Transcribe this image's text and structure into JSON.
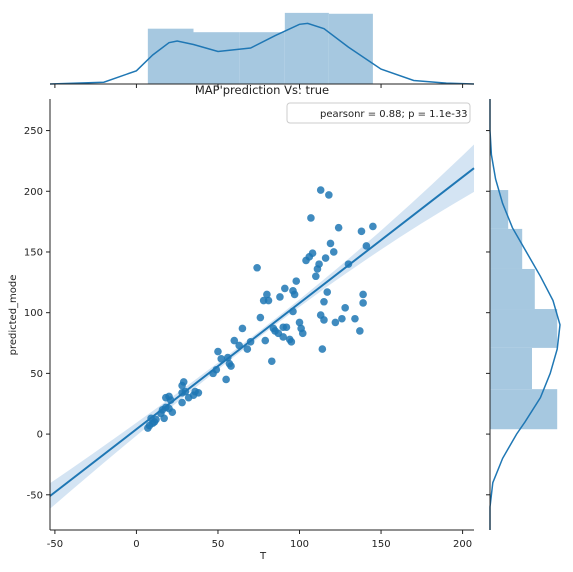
{
  "chart_data": {
    "type": "scatter",
    "title": "MAP'prediction Vs: true",
    "xlabel": "T",
    "ylabel": "predicted_mode",
    "xlim": [
      -53,
      207
    ],
    "ylim": [
      -79,
      276
    ],
    "x_ticks": [
      -50,
      0,
      50,
      100,
      150,
      200
    ],
    "y_ticks": [
      -50,
      0,
      50,
      100,
      150,
      200,
      250
    ],
    "legend_text": "pearsonr = 0.88; p = 1.1e-33",
    "legend_position": "top-right",
    "regression_line": {
      "x": [
        -53,
        207
      ],
      "y": [
        -51,
        219
      ]
    },
    "points": {
      "x": [
        7,
        8,
        9,
        10,
        11,
        12,
        15,
        16,
        17,
        18,
        18,
        20,
        20,
        21,
        22,
        28,
        28,
        28,
        29,
        30,
        32,
        35,
        36,
        38,
        47,
        49,
        50,
        52,
        55,
        56,
        57,
        58,
        60,
        63,
        65,
        68,
        70,
        74,
        76,
        78,
        79,
        80,
        81,
        83,
        84,
        85,
        87,
        88,
        90,
        90,
        91,
        92,
        94,
        95,
        96,
        96,
        97,
        98,
        100,
        101,
        102,
        104,
        106,
        107,
        108,
        110,
        111,
        112,
        113,
        113,
        114,
        115,
        115,
        116,
        117,
        118,
        119,
        121,
        122,
        124,
        126,
        128,
        130,
        134,
        137,
        138,
        139,
        139,
        141,
        145
      ],
      "y": [
        5,
        7,
        13,
        9,
        10,
        12,
        17,
        20,
        13,
        30,
        22,
        31,
        21,
        28,
        18,
        26,
        34,
        40,
        43,
        35,
        30,
        32,
        35,
        34,
        50,
        53,
        68,
        62,
        45,
        63,
        58,
        56,
        77,
        73,
        87,
        70,
        76,
        137,
        96,
        110,
        77,
        115,
        110,
        60,
        87,
        85,
        83,
        113,
        88,
        80,
        120,
        88,
        78,
        76,
        118,
        101,
        115,
        126,
        92,
        87,
        83,
        143,
        146,
        178,
        149,
        130,
        136,
        140,
        98,
        201,
        70,
        109,
        94,
        145,
        117,
        197,
        157,
        150,
        92,
        170,
        95,
        104,
        140,
        95,
        85,
        167,
        108,
        115,
        155,
        171
      ]
    },
    "top_histogram": {
      "bin_edges": [
        7,
        35,
        63,
        91,
        118,
        145
      ],
      "density": [
        0.0063,
        0.0059,
        0.0059,
        0.0081,
        0.008
      ]
    },
    "right_histogram": {
      "bin_edges": [
        4,
        37,
        71,
        103,
        136,
        169,
        201
      ],
      "density": [
        0.0048,
        0.003,
        0.0048,
        0.0032,
        0.0023,
        0.0013
      ]
    },
    "top_kde": {
      "x": [
        -53,
        -20,
        0,
        10,
        20,
        25,
        35,
        50,
        70,
        85,
        100,
        105,
        115,
        130,
        150,
        170,
        190,
        207
      ],
      "density": [
        0.0,
        0.0002,
        0.0015,
        0.0033,
        0.0047,
        0.0049,
        0.0045,
        0.0037,
        0.0041,
        0.0055,
        0.0068,
        0.0069,
        0.0063,
        0.0042,
        0.0017,
        0.0004,
        0.0001,
        0.0
      ]
    },
    "right_kde": {
      "y": [
        -79,
        -60,
        -40,
        -20,
        0,
        10,
        30,
        50,
        70,
        90,
        110,
        130,
        150,
        170,
        190,
        210,
        230,
        250,
        276
      ],
      "density": [
        0.0,
        0.0,
        0.0002,
        0.0009,
        0.0019,
        0.0025,
        0.0036,
        0.0043,
        0.0048,
        0.005,
        0.0045,
        0.0036,
        0.0026,
        0.0016,
        0.0009,
        0.0004,
        0.0001,
        0.0,
        0.0
      ]
    },
    "colors": {
      "points": "#1f77b4",
      "line": "#1f77b4",
      "band": "#c6dbef",
      "hist": "#a6c8e0",
      "axis": "#222222"
    }
  }
}
